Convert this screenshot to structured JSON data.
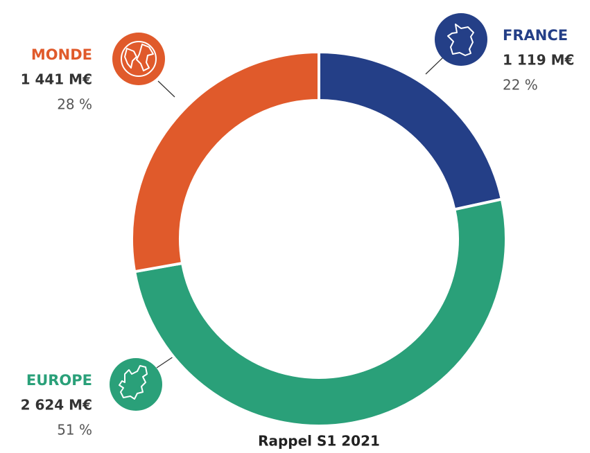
{
  "chart_data": {
    "type": "donut",
    "title": "Rappel S1 2021",
    "categories": [
      "FRANCE",
      "EUROPE",
      "MONDE"
    ],
    "values": [
      1119,
      2624,
      1441
    ],
    "value_labels": [
      "1 119 M€",
      "2 624 M€",
      "1 441 M€"
    ],
    "shares": [
      22,
      51,
      28
    ],
    "share_labels": [
      "22 %",
      "51 %",
      "28 %"
    ],
    "colors": [
      "#243f87",
      "#2aa079",
      "#e05a2b"
    ]
  }
}
